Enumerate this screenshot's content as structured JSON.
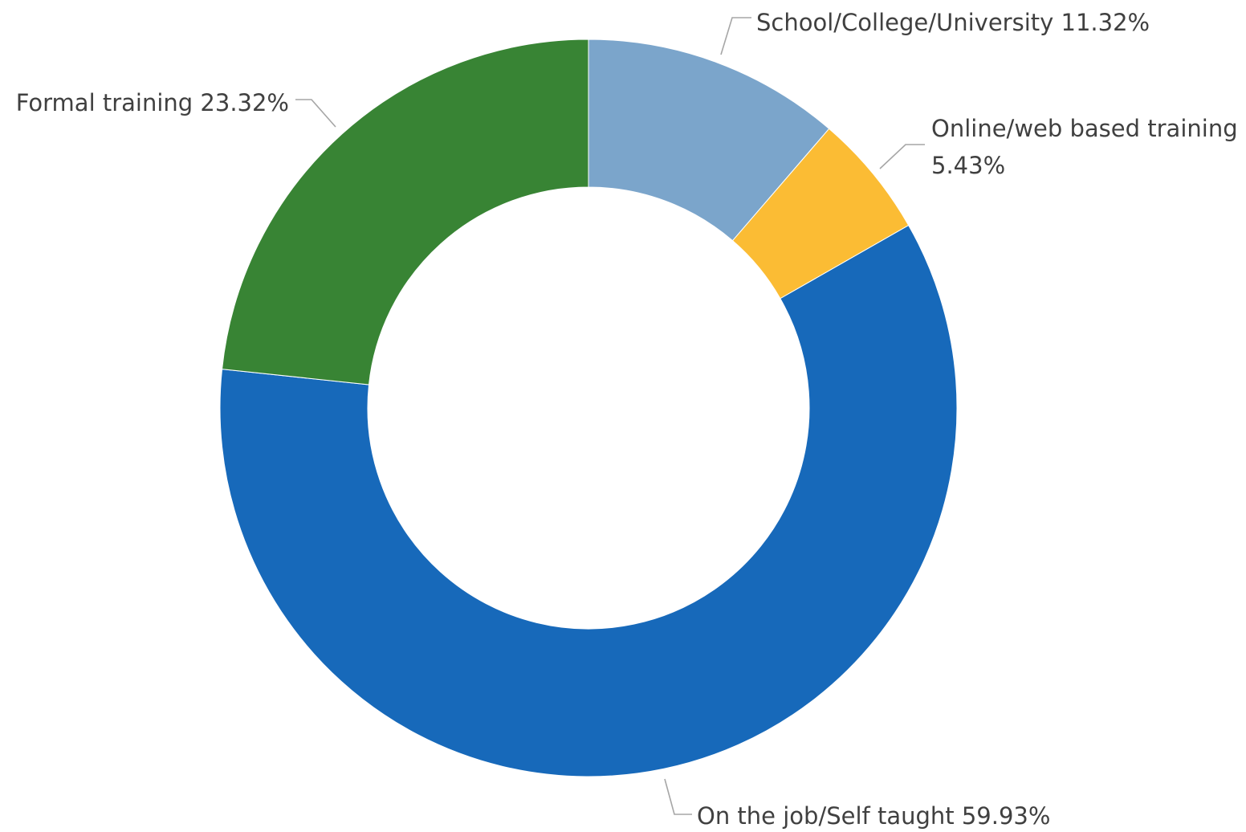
{
  "chart_data": {
    "type": "pie",
    "variant": "donut",
    "series": [
      {
        "name": "School/College/University",
        "value": 11.32,
        "label": "School/College/University 11.32%",
        "color": "#7BA5CB"
      },
      {
        "name": "Online/web based training",
        "value": 5.43,
        "label_lines": [
          "Online/web based training",
          "5.43%"
        ],
        "color": "#FBBC34"
      },
      {
        "name": "On the job/Self taught",
        "value": 59.93,
        "label": "On the job/Self taught 59.93%",
        "color": "#1769BA"
      },
      {
        "name": "Formal training",
        "value": 23.32,
        "label": "Formal training 23.32%",
        "color": "#388434"
      }
    ],
    "unit": "%",
    "start_angle": "12 o'clock",
    "direction": "clockwise",
    "legend": "none",
    "data_labels": "outside with leader lines"
  }
}
